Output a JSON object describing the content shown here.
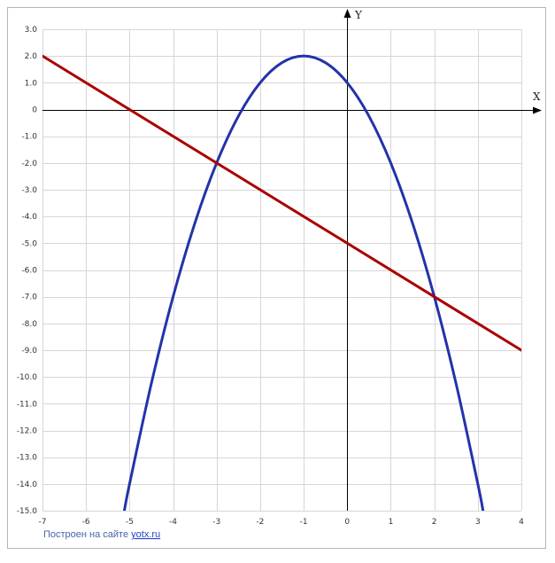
{
  "chart_data": {
    "type": "line",
    "xlabel": "X",
    "ylabel": "Y",
    "xlim": [
      -7,
      4
    ],
    "ylim": [
      -15,
      3
    ],
    "x_ticks": [
      -7,
      -6,
      -5,
      -4,
      -3,
      -2,
      -1,
      0,
      1,
      2,
      3,
      4
    ],
    "x_tick_labels": [
      "-7",
      "-6",
      "-5",
      "-4",
      "-3",
      "-2",
      "-1",
      "0",
      "1",
      "2",
      "3",
      "4"
    ],
    "y_ticks": [
      3,
      2,
      1,
      0,
      -1,
      -2,
      -3,
      -4,
      -5,
      -6,
      -7,
      -8,
      -9,
      -10,
      -11,
      -12,
      -13,
      -14,
      -15
    ],
    "y_tick_labels": [
      "3.0",
      "2.0",
      "1.0",
      "0",
      "-1.0",
      "-2.0",
      "-3.0",
      "-4.0",
      "-5.0",
      "-6.0",
      "-7.0",
      "-8.0",
      "-9.0",
      "-10.0",
      "-11.0",
      "-12.0",
      "-13.0",
      "-14.0",
      "-15.0"
    ],
    "grid": true,
    "series": [
      {
        "color": "#2233aa",
        "x": [
          -5.12,
          -5,
          -4.5,
          -4,
          -3.5,
          -3,
          -2.5,
          -2,
          -1.5,
          -1,
          -0.5,
          0,
          0.5,
          1,
          1.5,
          2,
          2.5,
          3,
          3.12
        ],
        "y": [
          -15,
          -14,
          -10.25,
          -7,
          -4.25,
          -2,
          -0.25,
          1,
          1.75,
          2,
          1.75,
          1,
          -0.25,
          -2,
          -4.25,
          -7,
          -10.25,
          -14,
          -15
        ]
      },
      {
        "color": "#aa0000",
        "x": [
          -7,
          4
        ],
        "y": [
          2,
          -9
        ]
      }
    ]
  },
  "footer": {
    "credit_prefix": "Построен на сайте ",
    "credit_link": "yotx.ru"
  }
}
